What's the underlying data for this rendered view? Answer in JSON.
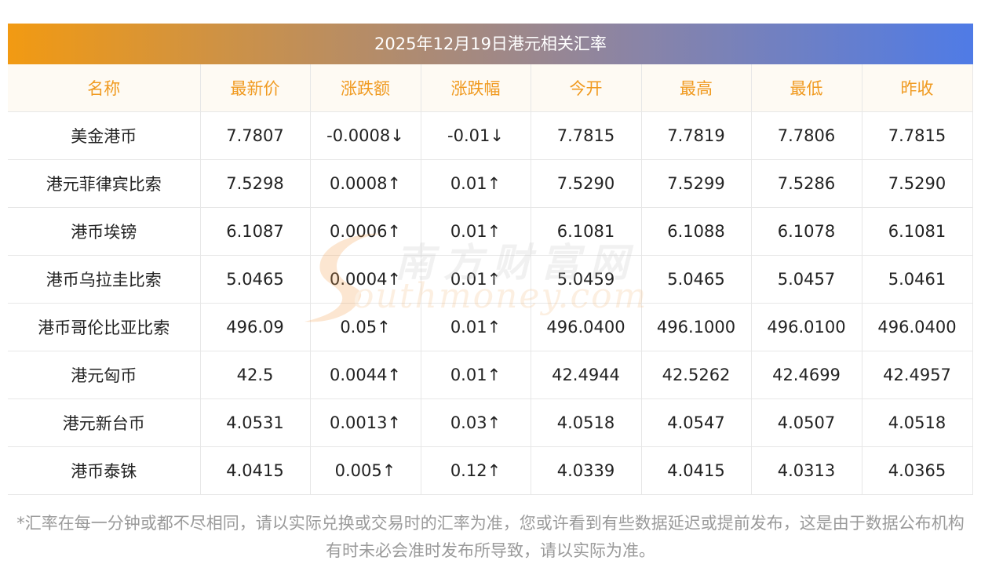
{
  "title": "2025年12月19日港元相关汇率",
  "columns": [
    "名称",
    "最新价",
    "涨跌额",
    "涨跌幅",
    "今开",
    "最高",
    "最低",
    "昨收"
  ],
  "rows": [
    {
      "name": "美金港币",
      "latest": "7.7807",
      "change": "-0.0008↓",
      "pct": "-0.01↓",
      "open": "7.7815",
      "high": "7.7819",
      "low": "7.7806",
      "prev": "7.7815",
      "dir": "down"
    },
    {
      "name": "港元菲律宾比索",
      "latest": "7.5298",
      "change": "0.0008↑",
      "pct": "0.01↑",
      "open": "7.5290",
      "high": "7.5299",
      "low": "7.5286",
      "prev": "7.5290",
      "dir": "up"
    },
    {
      "name": "港币埃镑",
      "latest": "6.1087",
      "change": "0.0006↑",
      "pct": "0.01↑",
      "open": "6.1081",
      "high": "6.1088",
      "low": "6.1078",
      "prev": "6.1081",
      "dir": "up"
    },
    {
      "name": "港币乌拉圭比索",
      "latest": "5.0465",
      "change": "0.0004↑",
      "pct": "0.01↑",
      "open": "5.0459",
      "high": "5.0465",
      "low": "5.0457",
      "prev": "5.0461",
      "dir": "up"
    },
    {
      "name": "港币哥伦比亚比索",
      "latest": "496.09",
      "change": "0.05↑",
      "pct": "0.01↑",
      "open": "496.0400",
      "high": "496.1000",
      "low": "496.0100",
      "prev": "496.0400",
      "dir": "up"
    },
    {
      "name": "港元匈币",
      "latest": "42.5",
      "change": "0.0044↑",
      "pct": "0.01↑",
      "open": "42.4944",
      "high": "42.5262",
      "low": "42.4699",
      "prev": "42.4957",
      "dir": "up"
    },
    {
      "name": "港元新台币",
      "latest": "4.0531",
      "change": "0.0013↑",
      "pct": "0.03↑",
      "open": "4.0518",
      "high": "4.0547",
      "low": "4.0507",
      "prev": "4.0518",
      "dir": "up"
    },
    {
      "name": "港币泰铢",
      "latest": "4.0415",
      "change": "0.005↑",
      "pct": "0.12↑",
      "open": "4.0339",
      "high": "4.0415",
      "low": "4.0313",
      "prev": "4.0365",
      "dir": "up"
    }
  ],
  "note": "*汇率在每一分钟或都不尽相同，请以实际兑换或交易时的汇率为准，您或许看到有些数据延迟或提前发布，这是由于数据公布机构有时未必会准时发布所导致，请以实际为准。",
  "watermark": {
    "cn": "南方财富网",
    "en": "outhmoney.com"
  },
  "colors": {
    "up": "#ee2222",
    "down": "#129a1e",
    "header_text": "#f09a20"
  }
}
